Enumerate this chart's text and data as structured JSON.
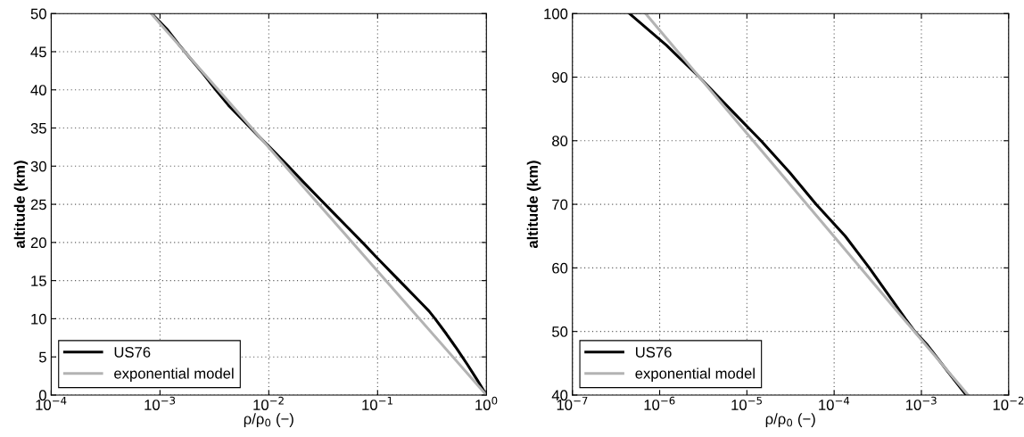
{
  "chart_data": [
    {
      "type": "line",
      "xlabel": "ρ/ρ$_{0}$ (−)",
      "ylabel": "altitude (km)",
      "log": "x",
      "grid": true,
      "legend": "bottom left",
      "line_style": "solid",
      "xlim": [
        0.0001,
        1
      ],
      "xticks": [
        {
          "value": 0.0001,
          "label": "10$^{−4}$"
        },
        {
          "value": 0.001,
          "label": "10$^{−3}$"
        },
        {
          "value": 0.01,
          "label": "10$^{−2}$"
        },
        {
          "value": 0.1,
          "label": "10$^{−1}$"
        },
        {
          "value": 1,
          "label": "10$^{0}$"
        }
      ],
      "ylim": [
        0,
        50
      ],
      "yticks": [
        0,
        5,
        10,
        15,
        20,
        25,
        30,
        35,
        40,
        45,
        50
      ],
      "series": [
        {
          "name": "US76",
          "color": "#000000",
          "x": [
            1,
            0.8217,
            0.6689,
            0.5389,
            0.4292,
            0.3376,
            0.2971,
            0.2538,
            0.1851,
            0.1352,
            0.0987,
            0.0726,
            0.0529,
            0.0385,
            0.0281,
            0.0205,
            0.0151,
            0.011,
            0.00797,
            0.00581,
            0.00425,
            0.00326,
            0.00253,
            0.00193,
            0.00148,
            0.00115,
            0.000839
          ],
          "values": [
            0,
            2,
            4,
            6,
            8,
            10,
            11,
            12,
            14,
            16,
            18,
            20,
            22,
            24,
            26,
            28,
            30,
            32,
            34,
            36,
            38,
            40,
            42,
            44,
            46,
            48,
            50
          ]
        },
        {
          "name": "exponential model",
          "color": "#b3b3b3",
          "x": [
            1,
            0.00083
          ],
          "values": [
            0,
            50
          ]
        }
      ]
    },
    {
      "type": "line",
      "xlabel": "ρ/ρ$_{0}$ (−)",
      "ylabel": "altitude (km)",
      "log": "x",
      "grid": true,
      "legend": "bottom left",
      "line_style": "solid",
      "xlim": [
        1e-07,
        0.01
      ],
      "xticks": [
        {
          "value": 1e-07,
          "label": "10$^{−7}$"
        },
        {
          "value": 1e-06,
          "label": "10$^{−6}$"
        },
        {
          "value": 1e-05,
          "label": "10$^{−5}$"
        },
        {
          "value": 0.0001,
          "label": "10$^{−4}$"
        },
        {
          "value": 0.001,
          "label": "10$^{−3}$"
        },
        {
          "value": 0.01,
          "label": "10$^{−2}$"
        }
      ],
      "ylim": [
        40,
        100
      ],
      "yticks": [
        40,
        50,
        60,
        70,
        80,
        90,
        100
      ],
      "series": [
        {
          "name": "US76",
          "color": "#000000",
          "x": [
            0.00326,
            0.00193,
            0.00115,
            0.000839,
            0.000655,
            0.00046,
            0.000253,
            0.000134,
            6.2e-05,
            3.1e-05,
            1.45e-05,
            6.4e-06,
            2.85e-06,
            1.2e-06,
            4.5e-07
          ],
          "values": [
            40,
            44,
            48,
            50,
            52,
            55,
            60,
            65,
            70,
            75,
            80,
            85,
            90,
            95,
            100
          ]
        },
        {
          "name": "exponential model",
          "color": "#b3b3b3",
          "x": [
            0.00343,
            6.9e-07
          ],
          "values": [
            40,
            100
          ]
        }
      ]
    }
  ]
}
